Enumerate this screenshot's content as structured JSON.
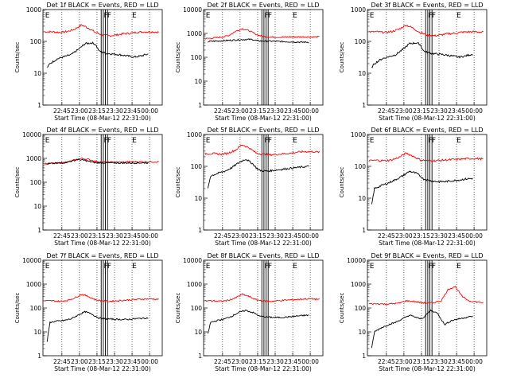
{
  "chart_data": [
    {
      "type": "line",
      "title": "Det 1f BLACK = Events, RED = LLD",
      "ylabel": "Counts/sec",
      "xlabel": "Start Time (08-Mar-12 22:31:00)",
      "yscale": "log",
      "ylim": [
        1,
        1000
      ],
      "yticks": [
        "1",
        "10",
        "100",
        "1000"
      ],
      "xlim": [
        22.6,
        24.3
      ],
      "xticks": [
        "22:45",
        "23:00",
        "23:15",
        "23:30",
        "23:45",
        "00:00"
      ],
      "markers": [
        "E",
        "F",
        "F",
        "E"
      ],
      "series": [
        {
          "name": "LLD",
          "color": "#ff0000",
          "t": [
            22.62,
            22.75,
            22.85,
            22.95,
            23.05,
            23.15,
            23.25,
            23.35,
            23.45,
            23.55,
            23.65,
            23.75,
            23.85,
            23.95,
            24.05,
            24.15,
            24.25
          ],
          "y": [
            200,
            200,
            190,
            205,
            240,
            330,
            260,
            190,
            160,
            150,
            160,
            175,
            180,
            195,
            200,
            200,
            195
          ]
        },
        {
          "name": "Events",
          "color": "#000000",
          "t": [
            22.66,
            22.7,
            22.8,
            22.9,
            23.0,
            23.1,
            23.2,
            23.3,
            23.35,
            23.4,
            23.5,
            23.6,
            23.7,
            23.8,
            23.9,
            24.0,
            24.1
          ],
          "y": [
            15,
            20,
            28,
            33,
            38,
            55,
            85,
            90,
            80,
            50,
            42,
            40,
            38,
            35,
            32,
            35,
            40
          ]
        }
      ]
    },
    {
      "type": "line",
      "title": "Det 2f BLACK = Events, RED = LLD",
      "ylabel": "Counts/sec",
      "xlabel": "Start Time (08-Mar-12 22:31:00)",
      "yscale": "log",
      "ylim": [
        1,
        10000
      ],
      "yticks": [
        "1",
        "10",
        "100",
        "1000",
        "10000"
      ],
      "xlim": [
        22.6,
        24.3
      ],
      "xticks": [
        "22:45",
        "23:00",
        "23:15",
        "23:30",
        "23:45",
        "00:00"
      ],
      "markers": [
        "E",
        "F",
        "F",
        "E"
      ],
      "series": [
        {
          "name": "LLD",
          "color": "#ff0000",
          "t": [
            22.62,
            22.75,
            22.85,
            22.95,
            23.05,
            23.15,
            23.25,
            23.35,
            23.45,
            23.55,
            23.65,
            23.75,
            23.85,
            23.95,
            24.05,
            24.15,
            24.25
          ],
          "y": [
            600,
            650,
            700,
            800,
            1200,
            1600,
            1300,
            900,
            750,
            700,
            700,
            700,
            720,
            720,
            720,
            720,
            720
          ]
        },
        {
          "name": "Events",
          "color": "#000000",
          "t": [
            22.66,
            22.7,
            22.8,
            22.9,
            23.0,
            23.1,
            23.2,
            23.3,
            23.35,
            23.4,
            23.5,
            23.6,
            23.7,
            23.8,
            23.9,
            24.0,
            24.1
          ],
          "y": [
            450,
            470,
            480,
            500,
            520,
            540,
            560,
            560,
            500,
            480,
            480,
            470,
            460,
            450,
            440,
            430,
            430
          ]
        }
      ]
    },
    {
      "type": "line",
      "title": "Det 3f BLACK = Events, RED = LLD",
      "ylabel": "Counts/sec",
      "xlabel": "Start Time (08-Mar-12 22:31:00)",
      "yscale": "log",
      "ylim": [
        1,
        1000
      ],
      "yticks": [
        "1",
        "10",
        "100",
        "1000"
      ],
      "xlim": [
        22.6,
        24.3
      ],
      "xticks": [
        "22:45",
        "23:00",
        "23:15",
        "23:30",
        "23:45",
        "00:00"
      ],
      "markers": [
        "E",
        "F",
        "F",
        "E"
      ],
      "series": [
        {
          "name": "LLD",
          "color": "#ff0000",
          "t": [
            22.62,
            22.75,
            22.85,
            22.95,
            23.05,
            23.15,
            23.25,
            23.35,
            23.45,
            23.55,
            23.65,
            23.75,
            23.85,
            23.95,
            24.05,
            24.15,
            24.25
          ],
          "y": [
            200,
            200,
            190,
            205,
            240,
            330,
            260,
            190,
            160,
            150,
            160,
            175,
            180,
            195,
            200,
            200,
            195
          ]
        },
        {
          "name": "Events",
          "color": "#000000",
          "t": [
            22.66,
            22.7,
            22.8,
            22.9,
            23.0,
            23.1,
            23.2,
            23.3,
            23.35,
            23.4,
            23.5,
            23.6,
            23.7,
            23.8,
            23.9,
            24.0,
            24.1
          ],
          "y": [
            15,
            20,
            28,
            33,
            38,
            55,
            85,
            90,
            80,
            50,
            42,
            40,
            38,
            35,
            32,
            35,
            40
          ]
        }
      ]
    },
    {
      "type": "line",
      "title": "Det 4f BLACK = Events, RED = LLD",
      "ylabel": "Counts/sec",
      "xlabel": "Start Time (08-Mar-12 22:31:00)",
      "yscale": "log",
      "ylim": [
        1,
        10000
      ],
      "yticks": [
        "1",
        "10",
        "100",
        "1000",
        "10000"
      ],
      "xlim": [
        22.6,
        24.3
      ],
      "xticks": [
        "22:45",
        "23:00",
        "23:15",
        "23:30",
        "23:45",
        "00:00"
      ],
      "markers": [
        "E",
        "F",
        "F",
        "E"
      ],
      "series": [
        {
          "name": "LLD",
          "color": "#ff0000",
          "t": [
            22.62,
            22.75,
            22.85,
            22.95,
            23.05,
            23.15,
            23.25,
            23.35,
            23.45,
            23.55,
            23.65,
            23.75,
            23.85,
            23.95,
            24.05,
            24.15,
            24.25
          ],
          "y": [
            600,
            620,
            650,
            700,
            850,
            1000,
            900,
            760,
            700,
            700,
            700,
            700,
            720,
            720,
            720,
            720,
            720
          ]
        },
        {
          "name": "Events",
          "color": "#000000",
          "t": [
            22.66,
            22.7,
            22.8,
            22.9,
            23.0,
            23.1,
            23.2,
            23.3,
            23.35,
            23.4,
            23.5,
            23.6,
            23.7,
            23.8,
            23.9,
            24.0,
            24.1
          ],
          "y": [
            580,
            600,
            620,
            660,
            760,
            900,
            820,
            700,
            660,
            650,
            650,
            650,
            640,
            640,
            640,
            650,
            650
          ]
        }
      ]
    },
    {
      "type": "line",
      "title": "Det 5f BLACK = Events, RED = LLD",
      "ylabel": "Counts/sec",
      "xlabel": "Start Time (08-Mar-12 22:31:00)",
      "yscale": "log",
      "ylim": [
        1,
        1000
      ],
      "yticks": [
        "1",
        "10",
        "100",
        "1000"
      ],
      "xlim": [
        22.6,
        24.3
      ],
      "xticks": [
        "22:45",
        "23:00",
        "23:15",
        "23:30",
        "23:45",
        "00:00"
      ],
      "markers": [
        "E",
        "F",
        "F",
        "E"
      ],
      "series": [
        {
          "name": "LLD",
          "color": "#ff0000",
          "t": [
            22.62,
            22.75,
            22.85,
            22.95,
            23.05,
            23.15,
            23.25,
            23.35,
            23.45,
            23.55,
            23.65,
            23.75,
            23.85,
            23.95,
            24.05,
            24.15,
            24.25
          ],
          "y": [
            250,
            250,
            240,
            260,
            320,
            480,
            380,
            260,
            240,
            230,
            240,
            250,
            260,
            280,
            290,
            290,
            280
          ]
        },
        {
          "name": "Events",
          "color": "#000000",
          "t": [
            22.66,
            22.7,
            22.8,
            22.9,
            23.0,
            23.1,
            23.2,
            23.3,
            23.35,
            23.4,
            23.5,
            23.6,
            23.7,
            23.8,
            23.9,
            24.0,
            24.1
          ],
          "y": [
            20,
            50,
            60,
            70,
            90,
            130,
            170,
            120,
            90,
            75,
            70,
            75,
            80,
            85,
            90,
            95,
            100
          ]
        }
      ]
    },
    {
      "type": "line",
      "title": "Det 6f BLACK = Events, RED = LLD",
      "ylabel": "Counts/sec",
      "xlabel": "Start Time (08-Mar-12 22:31:00)",
      "yscale": "log",
      "ylim": [
        1,
        1000
      ],
      "yticks": [
        "1",
        "10",
        "100",
        "1000"
      ],
      "xlim": [
        22.6,
        24.3
      ],
      "xticks": [
        "22:45",
        "23:00",
        "23:15",
        "23:30",
        "23:45",
        "00:00"
      ],
      "markers": [
        "E",
        "F",
        "F",
        "E"
      ],
      "series": [
        {
          "name": "LLD",
          "color": "#ff0000",
          "t": [
            22.62,
            22.75,
            22.85,
            22.95,
            23.05,
            23.15,
            23.25,
            23.35,
            23.45,
            23.55,
            23.65,
            23.75,
            23.85,
            23.95,
            24.05,
            24.15,
            24.25
          ],
          "y": [
            150,
            155,
            150,
            160,
            190,
            260,
            210,
            160,
            150,
            150,
            155,
            160,
            165,
            170,
            175,
            175,
            170
          ]
        },
        {
          "name": "Events",
          "color": "#000000",
          "t": [
            22.66,
            22.7,
            22.8,
            22.9,
            23.0,
            23.1,
            23.2,
            23.3,
            23.35,
            23.4,
            23.5,
            23.6,
            23.7,
            23.8,
            23.9,
            24.0,
            24.1
          ],
          "y": [
            6,
            20,
            25,
            30,
            38,
            50,
            70,
            60,
            50,
            40,
            35,
            33,
            33,
            35,
            37,
            40,
            42
          ]
        }
      ]
    },
    {
      "type": "line",
      "title": "Det 7f BLACK = Events, RED = LLD",
      "ylabel": "Counts/sec",
      "xlabel": "Start Time (08-Mar-12 22:31:00)",
      "yscale": "log",
      "ylim": [
        1,
        10000
      ],
      "yticks": [
        "1",
        "10",
        "100",
        "1000",
        "10000"
      ],
      "xlim": [
        22.6,
        24.3
      ],
      "xticks": [
        "22:45",
        "23:00",
        "23:15",
        "23:30",
        "23:45",
        "00:00"
      ],
      "markers": [
        "E",
        "F",
        "F",
        "E"
      ],
      "series": [
        {
          "name": "LLD",
          "color": "#ff0000",
          "t": [
            22.62,
            22.75,
            22.85,
            22.95,
            23.05,
            23.15,
            23.25,
            23.35,
            23.45,
            23.55,
            23.65,
            23.75,
            23.85,
            23.95,
            24.05,
            24.15,
            24.25
          ],
          "y": [
            200,
            200,
            190,
            210,
            260,
            380,
            300,
            220,
            200,
            190,
            200,
            210,
            220,
            230,
            240,
            240,
            230
          ]
        },
        {
          "name": "Events",
          "color": "#000000",
          "t": [
            22.66,
            22.7,
            22.8,
            22.9,
            23.0,
            23.1,
            23.2,
            23.3,
            23.35,
            23.4,
            23.5,
            23.6,
            23.7,
            23.8,
            23.9,
            24.0,
            24.1
          ],
          "y": [
            4,
            25,
            28,
            30,
            35,
            50,
            70,
            55,
            45,
            38,
            35,
            34,
            33,
            33,
            35,
            37,
            38
          ]
        }
      ]
    },
    {
      "type": "line",
      "title": "Det 8f BLACK = Events, RED = LLD",
      "ylabel": "Counts/sec",
      "xlabel": "Start Time (08-Mar-12 22:31:00)",
      "yscale": "log",
      "ylim": [
        1,
        10000
      ],
      "yticks": [
        "1",
        "10",
        "100",
        "1000",
        "10000"
      ],
      "xlim": [
        22.6,
        24.3
      ],
      "xticks": [
        "22:45",
        "23:00",
        "23:15",
        "23:30",
        "23:45",
        "00:00"
      ],
      "markers": [
        "E",
        "F",
        "F",
        "E"
      ],
      "series": [
        {
          "name": "LLD",
          "color": "#ff0000",
          "t": [
            22.62,
            22.75,
            22.85,
            22.95,
            23.05,
            23.15,
            23.25,
            23.35,
            23.45,
            23.55,
            23.65,
            23.75,
            23.85,
            23.95,
            24.05,
            24.15,
            24.25
          ],
          "y": [
            200,
            200,
            190,
            210,
            260,
            380,
            300,
            220,
            200,
            190,
            200,
            210,
            220,
            230,
            240,
            240,
            230
          ]
        },
        {
          "name": "Events",
          "color": "#000000",
          "t": [
            22.66,
            22.7,
            22.8,
            22.9,
            23.0,
            23.1,
            23.2,
            23.3,
            23.35,
            23.4,
            23.5,
            23.6,
            23.7,
            23.8,
            23.9,
            24.0,
            24.1
          ],
          "y": [
            8,
            25,
            30,
            35,
            45,
            65,
            80,
            65,
            55,
            45,
            42,
            40,
            40,
            42,
            45,
            48,
            50
          ]
        }
      ]
    },
    {
      "type": "line",
      "title": "Det 9f BLACK = Events, RED = LLD",
      "ylabel": "Counts/sec",
      "xlabel": "Start Time (08-Mar-12 22:31:00)",
      "yscale": "log",
      "ylim": [
        1,
        10000
      ],
      "yticks": [
        "1",
        "10",
        "100",
        "1000",
        "10000"
      ],
      "xlim": [
        22.6,
        24.3
      ],
      "xticks": [
        "22:45",
        "23:00",
        "23:15",
        "23:30",
        "23:45",
        "00:00"
      ],
      "markers": [
        "E",
        "F",
        "F",
        "E"
      ],
      "series": [
        {
          "name": "LLD",
          "color": "#ff0000",
          "t": [
            22.62,
            22.75,
            22.85,
            22.95,
            23.05,
            23.15,
            23.25,
            23.35,
            23.45,
            23.55,
            23.65,
            23.75,
            23.85,
            23.95,
            24.05,
            24.15,
            24.25
          ],
          "y": [
            150,
            150,
            145,
            150,
            160,
            200,
            190,
            170,
            160,
            170,
            200,
            600,
            800,
            300,
            200,
            180,
            170
          ]
        },
        {
          "name": "Events",
          "color": "#000000",
          "t": [
            22.66,
            22.7,
            22.8,
            22.9,
            23.0,
            23.1,
            23.2,
            23.3,
            23.35,
            23.4,
            23.5,
            23.6,
            23.7,
            23.8,
            23.9,
            24.0,
            24.1
          ],
          "y": [
            2,
            10,
            15,
            20,
            25,
            35,
            50,
            40,
            35,
            40,
            80,
            60,
            20,
            30,
            35,
            40,
            45
          ]
        }
      ]
    }
  ]
}
